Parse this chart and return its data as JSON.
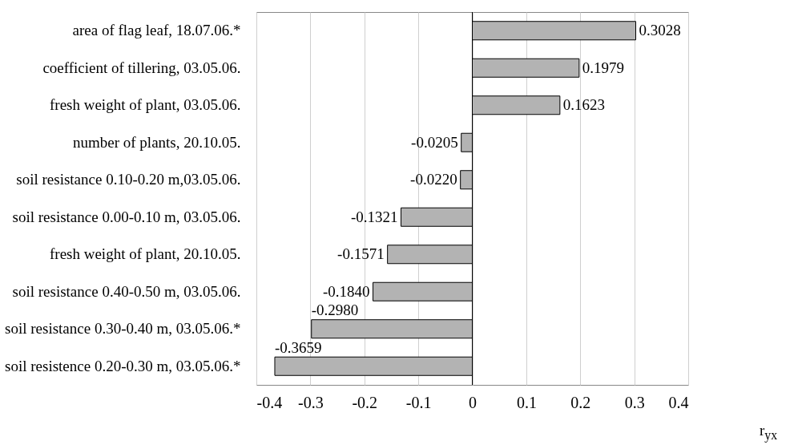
{
  "chart_data": {
    "type": "bar",
    "orientation": "horizontal",
    "xlabel": "r$_{yx}$",
    "categories": [
      "area of flag leaf, 18.07.06.*",
      "coefficient of tillering, 03.05.06.",
      "fresh weight of plant, 03.05.06.",
      "number of plants, 20.10.05.",
      "soil resistance 0.10-0.20 m,03.05.06.",
      "soil resistance 0.00-0.10 m, 03.05.06.",
      "fresh weight of plant, 20.10.05.",
      "soil resistance 0.40-0.50 m, 03.05.06.",
      "soil resistance 0.30-0.40 m, 03.05.06.*",
      "soil resistence 0.20-0.30 m, 03.05.06.*"
    ],
    "values": [
      0.3028,
      0.1979,
      0.1623,
      -0.0205,
      -0.022,
      -0.1321,
      -0.1571,
      -0.184,
      -0.298,
      -0.3659
    ],
    "value_labels": [
      "0.3028",
      "0.1979",
      "0.1623",
      "-0.0205",
      "-0.0220",
      "-0.1321",
      "-0.1571",
      "-0.1840",
      "-0.2980",
      "-0.3659"
    ],
    "color": "#b3b3b3",
    "xlim": [
      -0.4,
      0.4
    ],
    "xticks": [
      {
        "value": -0.4,
        "label": "-0.4"
      },
      {
        "value": -0.3,
        "label": "-0.3"
      },
      {
        "value": -0.2,
        "label": "-0.2"
      },
      {
        "value": -0.1,
        "label": "-0.1"
      },
      {
        "value": 0,
        "label": "0"
      },
      {
        "value": 0.1,
        "label": "0.1"
      },
      {
        "value": 0.2,
        "label": "0.2"
      },
      {
        "value": 0.3,
        "label": "0.3"
      },
      {
        "value": 0.4,
        "label": "0.4"
      }
    ],
    "grid": "x"
  }
}
